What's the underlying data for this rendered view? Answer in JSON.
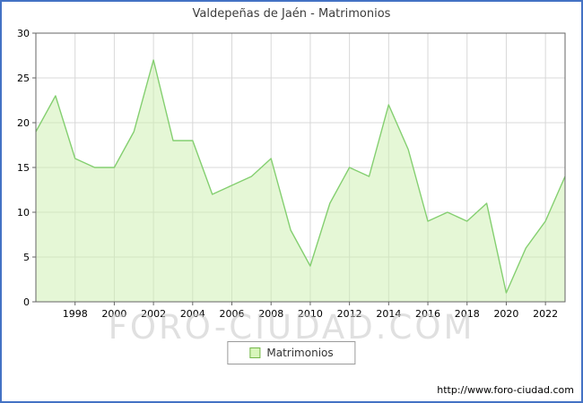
{
  "header": {
    "title": "Valdepeñas de Jaén - Matrimonios"
  },
  "chart_data": {
    "type": "area",
    "title": "Valdepeñas de Jaén - Matrimonios",
    "xlabel": "",
    "ylabel": "",
    "x": [
      1996,
      1997,
      1998,
      1999,
      2000,
      2001,
      2002,
      2003,
      2004,
      2005,
      2006,
      2007,
      2008,
      2009,
      2010,
      2011,
      2012,
      2013,
      2014,
      2015,
      2016,
      2017,
      2018,
      2019,
      2020,
      2021,
      2022,
      2023
    ],
    "series": [
      {
        "name": "Matrimonios",
        "values": [
          19,
          23,
          16,
          15,
          15,
          19,
          27,
          18,
          18,
          12,
          13,
          14,
          16,
          8,
          4,
          11,
          15,
          14,
          22,
          17,
          9,
          10,
          9,
          11,
          1,
          6,
          9,
          14
        ]
      }
    ],
    "ylim": [
      0,
      30
    ],
    "yticks": [
      0,
      5,
      10,
      15,
      20,
      25,
      30
    ],
    "xticks": [
      1998,
      2000,
      2002,
      2004,
      2006,
      2008,
      2010,
      2012,
      2014,
      2016,
      2018,
      2020,
      2022
    ],
    "grid": true,
    "legend_position": "bottom-center",
    "colors": {
      "frame_border": "#4472c4",
      "area_fill": "#cbefae",
      "line": "#84cf70",
      "grid": "#d8d8d8",
      "axis": "#666666",
      "tick_text": "#000000"
    }
  },
  "legend": {
    "label": "Matrimonios"
  },
  "watermark": {
    "text": "FORO-CIUDAD.COM"
  },
  "footer": {
    "url": "http://www.foro-ciudad.com"
  }
}
